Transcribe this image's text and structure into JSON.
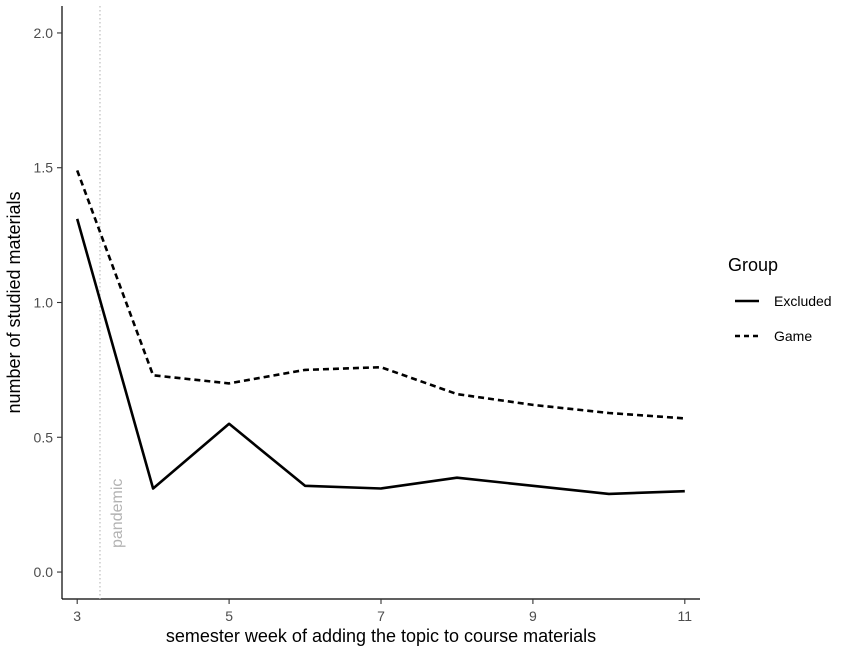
{
  "chart_data": {
    "type": "line",
    "title": "",
    "xlabel": "semester week of adding the topic to course materials",
    "ylabel": "number of studied materials",
    "xlim": [
      2.8,
      11.2
    ],
    "ylim": [
      -0.1,
      2.1
    ],
    "x_ticks": [
      3,
      5,
      7,
      9,
      11
    ],
    "y_ticks": [
      0.0,
      0.5,
      1.0,
      1.5,
      2.0
    ],
    "x_tick_labels": [
      "3",
      "5",
      "7",
      "9",
      "11"
    ],
    "y_tick_labels": [
      "0.0",
      "0.5",
      "1.0",
      "1.5",
      "2.0"
    ],
    "grid": false,
    "legend": {
      "title": "Group",
      "position": "right"
    },
    "annotation": {
      "text": "pandemic",
      "x": 3.3
    },
    "x": [
      3,
      4,
      5,
      6,
      7,
      8,
      9,
      10,
      11
    ],
    "series": [
      {
        "name": "Excluded",
        "style": "solid",
        "values": [
          1.31,
          0.31,
          0.55,
          0.32,
          0.31,
          0.35,
          0.32,
          0.29,
          0.3
        ]
      },
      {
        "name": "Game",
        "style": "dashed",
        "values": [
          1.49,
          0.73,
          0.7,
          0.75,
          0.76,
          0.66,
          0.62,
          0.59,
          0.57
        ]
      }
    ]
  }
}
